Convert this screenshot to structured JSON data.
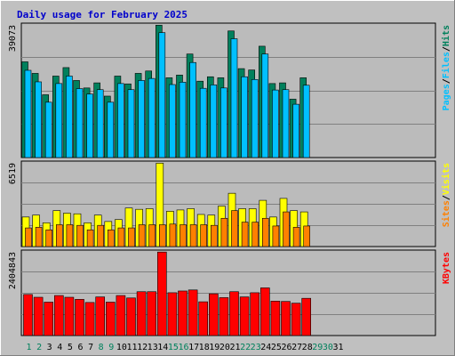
{
  "title": "Daily usage for February 2025",
  "colors": {
    "background": "#c0c0c0",
    "panel": "#bbbbbb",
    "title": "#0000cc",
    "hits": "#00805c",
    "files": "#00c0ff",
    "pages": "#00c0ff",
    "visits": "#ffff00",
    "sites": "#ff8000",
    "kbytes": "#ff0000",
    "weekend_label": "#00805c",
    "weekday_label": "#000000"
  },
  "chart_data": [
    {
      "type": "bar",
      "title": "Daily usage for February 2025",
      "categories": [
        "1",
        "2",
        "3",
        "4",
        "5",
        "6",
        "7",
        "8",
        "9",
        "10",
        "11",
        "12",
        "13",
        "14",
        "15",
        "16",
        "17",
        "18",
        "19",
        "20",
        "21",
        "22",
        "23",
        "24",
        "25",
        "26",
        "27",
        "28",
        "29",
        "30",
        "31"
      ],
      "weekend_days": [
        "1",
        "2",
        "8",
        "9",
        "15",
        "16",
        "22",
        "23",
        "29",
        "30"
      ],
      "ymax_label": "39073",
      "ylim": [
        0,
        39073
      ],
      "axis_labels": [
        "Pages",
        "/",
        "Files",
        "/",
        "Hits"
      ],
      "series": [
        {
          "name": "Hits",
          "values": [
            28200,
            24800,
            18500,
            24000,
            26500,
            22700,
            20500,
            22000,
            18100,
            24000,
            21700,
            24800,
            25500,
            39000,
            23500,
            24300,
            30500,
            22500,
            23800,
            23500,
            37300,
            26200,
            25800,
            32800,
            21800,
            22000,
            17200,
            23500,
            0,
            0,
            0
          ]
        },
        {
          "name": "Files",
          "values": [
            25700,
            22300,
            16300,
            21800,
            24000,
            20300,
            18700,
            20000,
            16300,
            21800,
            20000,
            22700,
            23300,
            36800,
            21500,
            22200,
            28000,
            20400,
            21400,
            20500,
            35000,
            23800,
            23000,
            30500,
            19900,
            20000,
            15700,
            21300,
            0,
            0,
            0
          ]
        },
        {
          "name": "Pages",
          "values": [
            0,
            0,
            0,
            0,
            0,
            0,
            0,
            0,
            0,
            0,
            0,
            0,
            0,
            0,
            0,
            0,
            0,
            0,
            0,
            0,
            0,
            0,
            0,
            0,
            0,
            0,
            0,
            0,
            0,
            0,
            0
          ]
        }
      ]
    },
    {
      "type": "bar",
      "ymax_label": "6519",
      "ylim": [
        0,
        6519
      ],
      "axis_labels": [
        "Sites",
        "/",
        "Visits"
      ],
      "series": [
        {
          "name": "Visits",
          "values": [
            2300,
            2450,
            1850,
            2800,
            2600,
            2550,
            1850,
            2450,
            1950,
            2100,
            3000,
            2900,
            2950,
            6500,
            2750,
            2850,
            2950,
            2500,
            2450,
            3150,
            4150,
            2950,
            2950,
            3600,
            2300,
            3750,
            2800,
            2700,
            0,
            0,
            0
          ]
        },
        {
          "name": "Sites",
          "values": [
            1450,
            1500,
            1300,
            1700,
            1700,
            1650,
            1300,
            1650,
            1300,
            1450,
            1450,
            1700,
            1700,
            1700,
            1750,
            1700,
            1700,
            1700,
            1650,
            2200,
            2800,
            1900,
            1900,
            2200,
            1600,
            2700,
            1500,
            1600,
            0,
            0,
            0
          ]
        }
      ]
    },
    {
      "type": "bar",
      "ymax_label": "2404843",
      "ylim": [
        0,
        2404843
      ],
      "axis_labels": [
        "KBytes"
      ],
      "series": [
        {
          "name": "KBytes",
          "values": [
            1180000,
            1100000,
            960000,
            1150000,
            1100000,
            1040000,
            950000,
            1110000,
            960000,
            1150000,
            1080000,
            1260000,
            1260000,
            2400000,
            1230000,
            1280000,
            1310000,
            970000,
            1200000,
            1090000,
            1260000,
            1110000,
            1230000,
            1370000,
            990000,
            980000,
            930000,
            1070000,
            0,
            0,
            0
          ]
        }
      ]
    }
  ]
}
